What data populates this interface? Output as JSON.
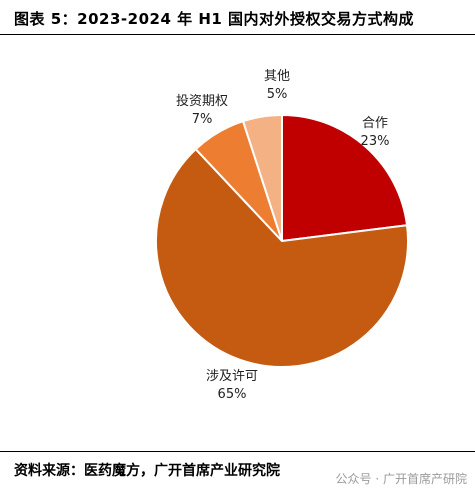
{
  "title": "图表 5：2023-2024 年 H1 国内对外授权交易方式构成",
  "source": "资料来源：医药魔方，广开首席产业研究院",
  "watermark": "公众号 · 广开首席产研院",
  "chart_data": {
    "type": "pie",
    "title": "",
    "start_angle_deg": 0,
    "direction": "clockwise",
    "legend": "none",
    "slices": [
      {
        "name": "合作",
        "value": 23,
        "label": "23%",
        "color": "#c00000"
      },
      {
        "name": "涉及许可",
        "value": 65,
        "label": "65%",
        "color": "#c55a11"
      },
      {
        "name": "投资期权",
        "value": 7,
        "label": "7%",
        "color": "#ed7d31"
      },
      {
        "name": "其他",
        "value": 5,
        "label": "5%",
        "color": "#f4b183"
      }
    ]
  }
}
